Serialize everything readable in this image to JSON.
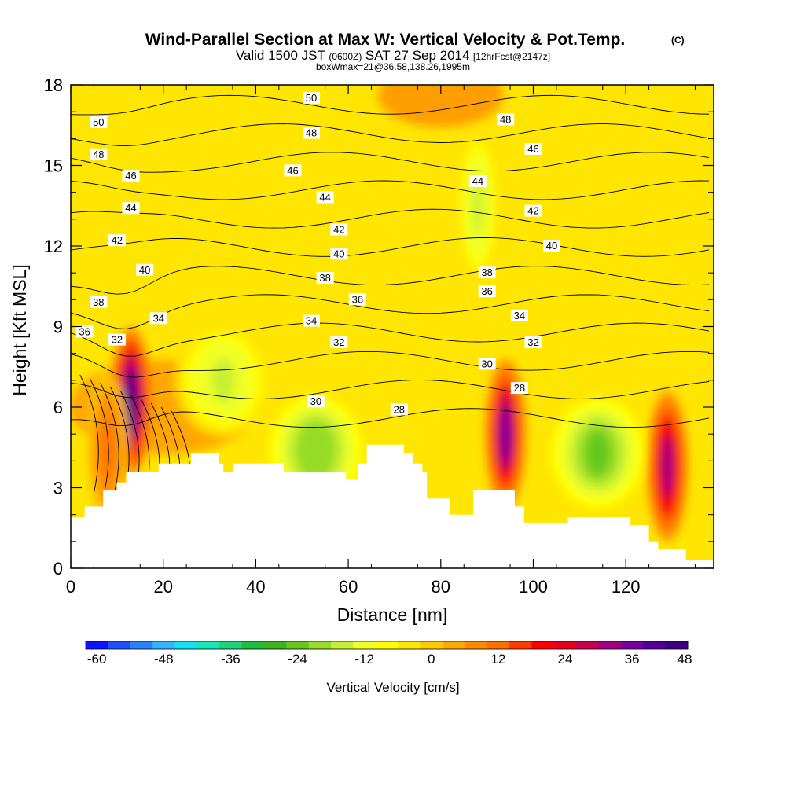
{
  "header": {
    "title": "Wind-Parallel Section at Max W: Vertical Velocity & Pot.Temp.",
    "title_tag": "(C)",
    "subtitle_a": "Valid 1500 JST",
    "subtitle_b": "(0600Z)",
    "subtitle_c": "SAT 27 Sep 2014",
    "subtitle_d": "[12hrFcst@2147z]",
    "subtitle2": "boxWmax=21@36.58,138.26,1995m"
  },
  "chart_data": {
    "type": "heatmap",
    "title": "Wind-Parallel Section at Max W: Vertical Velocity & Pot.Temp.",
    "xlabel": "Distance [nm]",
    "ylabel": "Height [Kft MSL]",
    "xlim": [
      0,
      139
    ],
    "ylim": [
      0,
      18
    ],
    "x_ticks": [
      "0",
      "20",
      "40",
      "60",
      "80",
      "100",
      "120"
    ],
    "y_ticks": [
      "0",
      "3",
      "6",
      "9",
      "12",
      "15",
      "18"
    ],
    "grid": false,
    "colorbar": {
      "label": "Vertical Velocity [cm/s]",
      "min": -60,
      "max": 48,
      "step": 4,
      "tick_labels": [
        "-60",
        "-48",
        "-36",
        "-24",
        "-12",
        "0",
        "12",
        "24",
        "36",
        "48"
      ],
      "colors": [
        "#0a14ff",
        "#1e50ff",
        "#2882ff",
        "#32b4ff",
        "#14e1f0",
        "#14e6b4",
        "#1ed278",
        "#1ebe3c",
        "#3cb41e",
        "#64c81e",
        "#96dc28",
        "#c8f032",
        "#f0ff28",
        "#ffff00",
        "#ffe600",
        "#ffc800",
        "#ffaa00",
        "#ff8c00",
        "#ff6e00",
        "#ff3c00",
        "#ff0000",
        "#e6001e",
        "#c80050",
        "#a00082",
        "#7800a0",
        "#500096",
        "#3c0082"
      ]
    },
    "terrain_top_kft": [
      [
        0,
        1.9
      ],
      [
        2,
        1.9
      ],
      [
        3,
        2.3
      ],
      [
        4,
        2.3
      ],
      [
        7,
        2.9
      ],
      [
        9,
        2.9
      ],
      [
        10,
        3.2
      ],
      [
        12,
        3.6
      ],
      [
        14,
        3.6
      ],
      [
        19,
        3.9
      ],
      [
        26,
        4.3
      ],
      [
        30,
        4.3
      ],
      [
        32,
        3.9
      ],
      [
        33,
        3.6
      ],
      [
        35,
        3.9
      ],
      [
        45,
        3.9
      ],
      [
        46,
        3.6
      ],
      [
        59,
        3.6
      ],
      [
        59.5,
        3.3
      ],
      [
        61,
        3.3
      ],
      [
        62,
        3.9
      ],
      [
        64,
        4.6
      ],
      [
        71,
        4.6
      ],
      [
        72,
        4.3
      ],
      [
        74,
        3.9
      ],
      [
        76,
        3.6
      ],
      [
        77,
        2.6
      ],
      [
        81,
        2.6
      ],
      [
        82,
        2.0
      ],
      [
        84,
        2.0
      ],
      [
        87,
        2.9
      ],
      [
        94,
        2.9
      ],
      [
        96,
        2.3
      ],
      [
        98,
        1.7
      ],
      [
        107,
        1.7
      ],
      [
        107.5,
        1.9
      ],
      [
        120,
        1.9
      ],
      [
        121,
        1.6
      ],
      [
        125,
        1.0
      ],
      [
        127,
        0.7
      ],
      [
        132,
        0.7
      ],
      [
        133,
        0.3
      ],
      [
        139,
        0.3
      ]
    ],
    "updraft_cores": [
      {
        "x": 13,
        "z": 6.2,
        "w": 44
      },
      {
        "x": 94,
        "z": 5.0,
        "w": 36
      },
      {
        "x": 129,
        "z": 3.8,
        "w": 34
      },
      {
        "x": 8,
        "z": 4.5,
        "w": 14
      }
    ],
    "downdraft_cores": [
      {
        "x": 53,
        "z": 4.4,
        "w": -20
      },
      {
        "x": 114,
        "z": 4.3,
        "w": -24
      },
      {
        "x": 88,
        "z": 13.5,
        "w": -14
      },
      {
        "x": 33,
        "z": 7.0,
        "w": -14
      }
    ],
    "theta_contours": [
      "28",
      "30",
      "32",
      "34",
      "36",
      "38",
      "40",
      "42",
      "44",
      "46",
      "48",
      "50"
    ],
    "theta_labels": [
      {
        "text": "50",
        "x": 6,
        "z": 16.6
      },
      {
        "text": "48",
        "x": 6,
        "z": 15.4
      },
      {
        "text": "46",
        "x": 13,
        "z": 14.6
      },
      {
        "text": "44",
        "x": 13,
        "z": 13.4
      },
      {
        "text": "42",
        "x": 10,
        "z": 12.2
      },
      {
        "text": "40",
        "x": 16,
        "z": 11.1
      },
      {
        "text": "38",
        "x": 6,
        "z": 9.9
      },
      {
        "text": "36",
        "x": 3,
        "z": 8.8
      },
      {
        "text": "34",
        "x": 19,
        "z": 9.3
      },
      {
        "text": "32",
        "x": 10,
        "z": 8.5
      },
      {
        "text": "50",
        "x": 52,
        "z": 17.5
      },
      {
        "text": "48",
        "x": 52,
        "z": 16.2
      },
      {
        "text": "46",
        "x": 48,
        "z": 14.8
      },
      {
        "text": "44",
        "x": 55,
        "z": 13.8
      },
      {
        "text": "42",
        "x": 58,
        "z": 12.6
      },
      {
        "text": "40",
        "x": 58,
        "z": 11.7
      },
      {
        "text": "38",
        "x": 55,
        "z": 10.8
      },
      {
        "text": "36",
        "x": 62,
        "z": 10.0
      },
      {
        "text": "34",
        "x": 52,
        "z": 9.2
      },
      {
        "text": "32",
        "x": 58,
        "z": 8.4
      },
      {
        "text": "30",
        "x": 53,
        "z": 6.2
      },
      {
        "text": "28",
        "x": 71,
        "z": 5.9
      },
      {
        "text": "48",
        "x": 94,
        "z": 16.7
      },
      {
        "text": "46",
        "x": 100,
        "z": 15.6
      },
      {
        "text": "44",
        "x": 88,
        "z": 14.4
      },
      {
        "text": "42",
        "x": 100,
        "z": 13.3
      },
      {
        "text": "40",
        "x": 104,
        "z": 12.0
      },
      {
        "text": "38",
        "x": 90,
        "z": 11.0
      },
      {
        "text": "36",
        "x": 90,
        "z": 10.3
      },
      {
        "text": "34",
        "x": 97,
        "z": 9.4
      },
      {
        "text": "32",
        "x": 100,
        "z": 8.4
      },
      {
        "text": "30",
        "x": 90,
        "z": 7.6
      },
      {
        "text": "28",
        "x": 97,
        "z": 6.7
      }
    ]
  }
}
